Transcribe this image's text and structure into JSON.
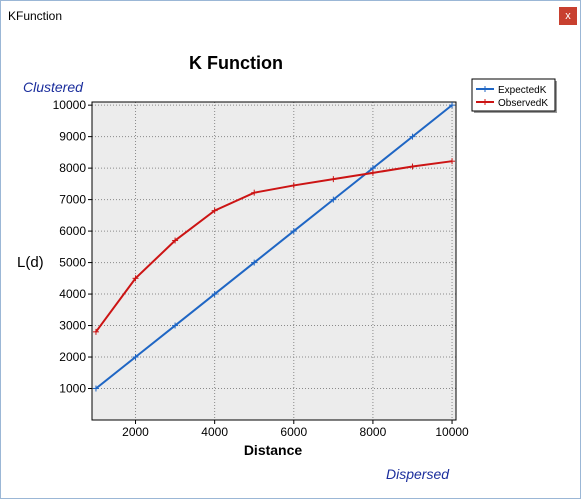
{
  "window": {
    "title": "KFunction",
    "close_label": "x"
  },
  "annotations": {
    "top_left": "Clustered",
    "bottom_right": "Dispersed"
  },
  "chart_data": {
    "type": "line",
    "title": "K Function",
    "xlabel": "Distance",
    "ylabel": "L(d)",
    "xlim": [
      900,
      10100
    ],
    "ylim": [
      0,
      10100
    ],
    "x_ticks": [
      2000,
      4000,
      6000,
      8000,
      10000
    ],
    "y_ticks": [
      1000,
      2000,
      3000,
      4000,
      5000,
      6000,
      7000,
      8000,
      9000,
      10000
    ],
    "grid": true,
    "legend": "top-right",
    "x": [
      1000,
      2000,
      3000,
      4000,
      5000,
      6000,
      7000,
      8000,
      9000,
      10000
    ],
    "series": [
      {
        "name": "ExpectedK",
        "color": "#1f66c4",
        "values": [
          1000,
          2000,
          3000,
          4000,
          5000,
          6000,
          7000,
          8000,
          9000,
          10000
        ]
      },
      {
        "name": "ObservedK",
        "color": "#cc1414",
        "values": [
          2800,
          4500,
          5700,
          6650,
          7220,
          7450,
          7650,
          7850,
          8050,
          8220
        ]
      }
    ]
  }
}
